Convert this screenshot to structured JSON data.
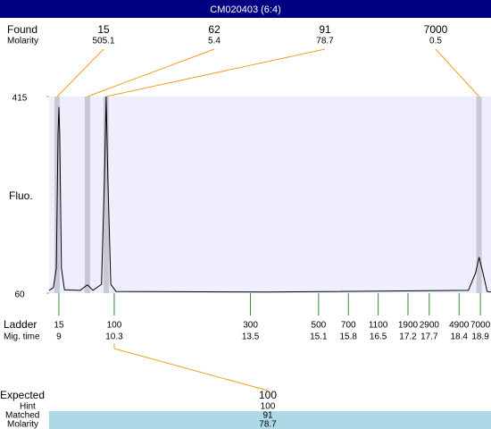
{
  "chart_data": {
    "type": "line",
    "title": "CM020403 (6:4)",
    "y_label": "Fluo.",
    "ylim": [
      60,
      415
    ],
    "yticks": [
      60,
      415
    ],
    "xlim": [
      8.77,
      19.15
    ],
    "color": "#000000",
    "x": [
      8.77,
      8.87,
      8.94,
      8.98,
      9.0,
      9.02,
      9.06,
      9.13,
      9.5,
      9.67,
      9.8,
      10.0,
      10.07,
      10.11,
      10.15,
      10.22,
      10.34,
      13.9,
      18.62,
      18.79,
      18.87,
      18.96,
      19.06,
      19.15
    ],
    "values": [
      65,
      70,
      105,
      347,
      396,
      347,
      105,
      66,
      65,
      75,
      65,
      76,
      267,
      415,
      267,
      76,
      63,
      62,
      65,
      97,
      125,
      97,
      63,
      62
    ],
    "found": {
      "label": "Found",
      "molarity_label": "Molarity",
      "sizes": [
        15,
        62,
        91,
        7000
      ],
      "molarities": [
        505.1,
        5.4,
        78.7,
        0.5
      ],
      "times": [
        8.96,
        9.67,
        10.11,
        18.87
      ]
    },
    "ladder": {
      "label": "Ladder",
      "time_label": "Mig. time",
      "sizes": [
        15,
        100,
        300,
        500,
        700,
        1100,
        1900,
        2900,
        4900,
        7000
      ],
      "times": [
        9,
        10.3,
        13.5,
        15.1,
        15.8,
        16.5,
        17.2,
        17.7,
        18.4,
        18.9
      ]
    },
    "expected": {
      "label": "Expected",
      "value": 100,
      "hint_label": "Hint",
      "hint": 100,
      "matched_label": "Matched",
      "matched": 91,
      "molarity_label": "Molarity",
      "molarity": 78.7
    }
  }
}
